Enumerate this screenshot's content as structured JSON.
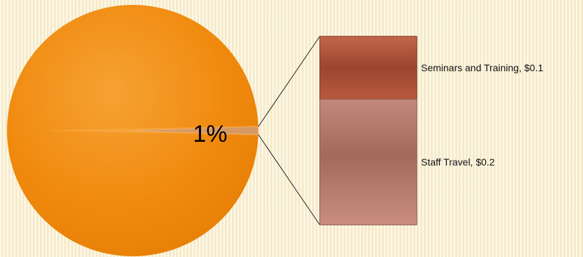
{
  "chart_data": {
    "type": "bar-of-pie",
    "pie": {
      "slice_labels": [
        "1%"
      ],
      "colors": {
        "main": "#f08c10",
        "split": "#c98a5c"
      }
    },
    "bar": {
      "categories": [
        "Seminars and Training",
        "Staff Travel"
      ],
      "values": [
        0.1,
        0.2
      ],
      "labels": [
        "Seminars and Training,  $0.1",
        "Staff Travel,  $0.2"
      ],
      "colors": [
        "#a04a33",
        "#a36a5c"
      ]
    }
  }
}
